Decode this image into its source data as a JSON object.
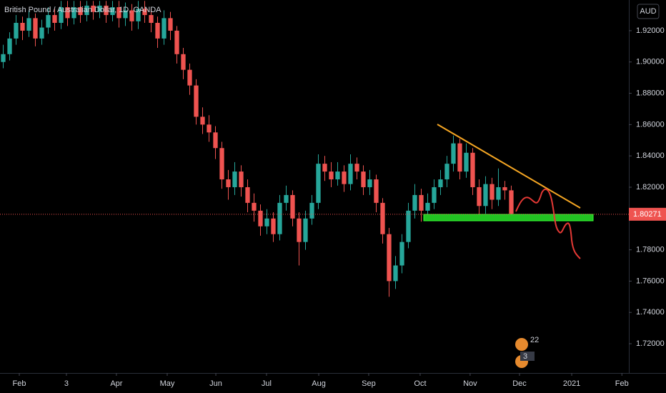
{
  "chart_data": {
    "type": "candlestick",
    "title": "British Pound / Australian Dollar, 1D, OANDA",
    "currency": "AUD",
    "last_price": 1.80271,
    "events": [
      "22",
      "3"
    ],
    "up_color": "#26a69a",
    "down_color": "#ef5350",
    "open": [
      1.9,
      1.905,
      1.915,
      1.925,
      1.92,
      1.928,
      1.915,
      1.922,
      1.93,
      1.925,
      1.935,
      1.928,
      1.935,
      1.93,
      1.936,
      1.932,
      1.936,
      1.93,
      1.935,
      1.928,
      1.933,
      1.926,
      1.934,
      1.93,
      1.925,
      1.915,
      1.928,
      1.92,
      1.905,
      1.895,
      1.885,
      1.865,
      1.86,
      1.855,
      1.845,
      1.825,
      1.82,
      1.83,
      1.82,
      1.81,
      1.805,
      1.795,
      1.8,
      1.79,
      1.81,
      1.815,
      1.8,
      1.785,
      1.8,
      1.81,
      1.835,
      1.83,
      1.825,
      1.83,
      1.822,
      1.835,
      1.83,
      1.82,
      1.825,
      1.81,
      1.79,
      1.76,
      1.77,
      1.785,
      1.805,
      1.815,
      1.805,
      1.81,
      1.82,
      1.825,
      1.835,
      1.848,
      1.83,
      1.842,
      1.82,
      1.808,
      1.822,
      1.812,
      1.82,
      1.818
    ],
    "high": [
      1.911,
      1.919,
      1.93,
      1.929,
      1.933,
      1.931,
      1.927,
      1.935,
      1.934,
      1.939,
      1.939,
      1.939,
      1.939,
      1.939,
      1.939,
      1.939,
      1.939,
      1.939,
      1.939,
      1.938,
      1.937,
      1.939,
      1.939,
      1.934,
      1.929,
      1.933,
      1.932,
      1.923,
      1.909,
      1.899,
      1.889,
      1.871,
      1.866,
      1.859,
      1.849,
      1.831,
      1.836,
      1.834,
      1.825,
      1.816,
      1.809,
      1.806,
      1.804,
      1.815,
      1.821,
      1.818,
      1.804,
      1.805,
      1.815,
      1.841,
      1.84,
      1.836,
      1.836,
      1.834,
      1.841,
      1.839,
      1.834,
      1.831,
      1.828,
      1.813,
      1.794,
      1.776,
      1.79,
      1.81,
      1.822,
      1.819,
      1.816,
      1.825,
      1.831,
      1.84,
      1.853,
      1.851,
      1.848,
      1.845,
      1.825,
      1.827,
      1.826,
      1.832,
      1.824,
      1.821
    ],
    "low": [
      1.896,
      1.901,
      1.911,
      1.914,
      1.916,
      1.91,
      1.911,
      1.918,
      1.92,
      1.921,
      1.923,
      1.924,
      1.925,
      1.926,
      1.927,
      1.928,
      1.925,
      1.926,
      1.922,
      1.923,
      1.92,
      1.921,
      1.925,
      1.919,
      1.909,
      1.911,
      1.914,
      1.899,
      1.889,
      1.879,
      1.86,
      1.854,
      1.849,
      1.838,
      1.819,
      1.812,
      1.815,
      1.814,
      1.804,
      1.798,
      1.789,
      1.79,
      1.785,
      1.786,
      1.805,
      1.795,
      1.77,
      1.78,
      1.796,
      1.806,
      1.824,
      1.82,
      1.821,
      1.817,
      1.818,
      1.825,
      1.815,
      1.815,
      1.804,
      1.784,
      1.75,
      1.755,
      1.765,
      1.781,
      1.8,
      1.798,
      1.8,
      1.806,
      1.815,
      1.82,
      1.83,
      1.825,
      1.826,
      1.815,
      1.8,
      1.803,
      1.806,
      1.808,
      1.812,
      1.8
    ],
    "close": [
      1.905,
      1.915,
      1.925,
      1.92,
      1.928,
      1.915,
      1.922,
      1.93,
      1.925,
      1.935,
      1.928,
      1.935,
      1.93,
      1.936,
      1.932,
      1.936,
      1.93,
      1.935,
      1.928,
      1.933,
      1.926,
      1.934,
      1.93,
      1.925,
      1.915,
      1.928,
      1.92,
      1.905,
      1.895,
      1.885,
      1.865,
      1.86,
      1.855,
      1.845,
      1.825,
      1.82,
      1.83,
      1.82,
      1.81,
      1.805,
      1.795,
      1.8,
      1.79,
      1.81,
      1.815,
      1.8,
      1.785,
      1.8,
      1.81,
      1.835,
      1.83,
      1.825,
      1.83,
      1.822,
      1.835,
      1.83,
      1.82,
      1.825,
      1.81,
      1.79,
      1.76,
      1.77,
      1.785,
      1.805,
      1.815,
      1.805,
      1.81,
      1.82,
      1.825,
      1.835,
      1.848,
      1.83,
      1.842,
      1.82,
      1.808,
      1.822,
      1.812,
      1.82,
      1.818,
      1.803
    ],
    "xlim": [
      -0.5,
      97.28
    ],
    "xticks": [
      {
        "value": 2.5,
        "label": "Feb"
      },
      {
        "value": 9.83,
        "label": "3"
      },
      {
        "value": 17.6,
        "label": "Apr"
      },
      {
        "value": 25.5,
        "label": "May"
      },
      {
        "value": 33.06,
        "label": "Jun"
      },
      {
        "value": 40.94,
        "label": "Jul"
      },
      {
        "value": 49.06,
        "label": "Aug"
      },
      {
        "value": 56.83,
        "label": "Sep"
      },
      {
        "value": 64.83,
        "label": "Oct"
      },
      {
        "value": 72.6,
        "label": "Nov"
      },
      {
        "value": 80.28,
        "label": "Dec"
      },
      {
        "value": 88.4,
        "label": "2021"
      },
      {
        "value": 96.2,
        "label": "Feb"
      }
    ],
    "ylim": [
      1.7013,
      1.9396
    ],
    "yticks": [
      {
        "value": 1.72,
        "label": "1.72000"
      },
      {
        "value": 1.74,
        "label": "1.74000"
      },
      {
        "value": 1.76,
        "label": "1.76000"
      },
      {
        "value": 1.78,
        "label": "1.78000"
      },
      {
        "value": 1.8,
        "label": "1.80000"
      },
      {
        "value": 1.82,
        "label": "1.82000"
      },
      {
        "value": 1.84,
        "label": "1.84000"
      },
      {
        "value": 1.86,
        "label": "1.86000"
      },
      {
        "value": 1.88,
        "label": "1.88000"
      },
      {
        "value": 1.9,
        "label": "1.90000"
      },
      {
        "value": 1.92,
        "label": "1.92000"
      }
    ]
  }
}
